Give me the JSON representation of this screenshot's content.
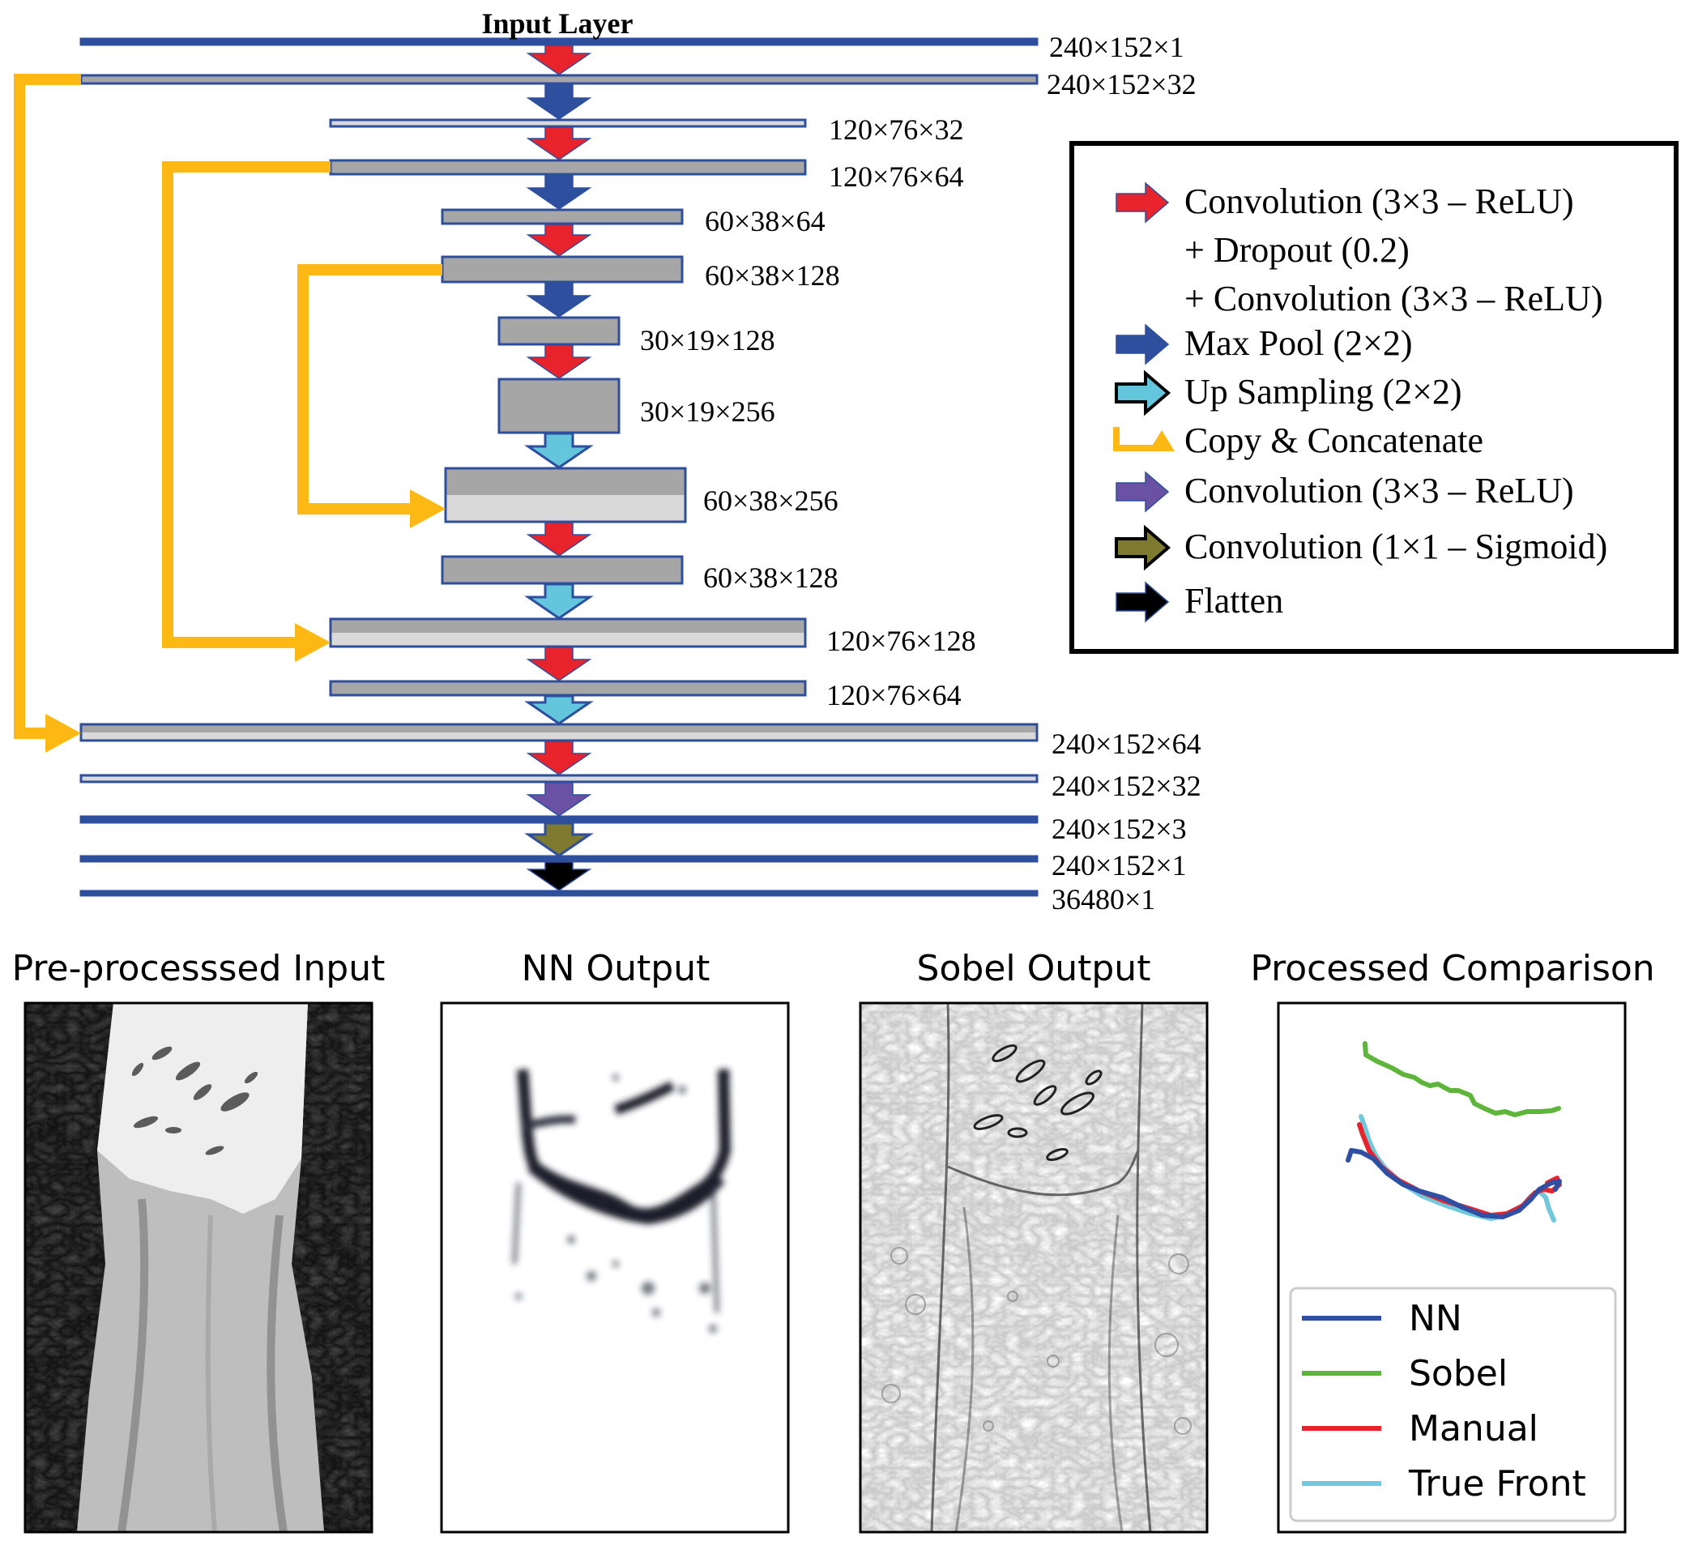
{
  "network": {
    "title": "Input Layer",
    "dims": [
      "240×152×1",
      "240×152×32",
      "120×76×32",
      "120×76×64",
      "60×38×64",
      "60×38×128",
      "30×19×128",
      "30×19×256",
      "60×38×256",
      "60×38×128",
      "120×76×128",
      "120×76×64",
      "240×152×64",
      "240×152×32",
      "240×152×3",
      "240×152×1",
      "36480×1"
    ]
  },
  "legend": {
    "items": [
      {
        "id": "conv-dropout",
        "lines": [
          "Convolution (3×3 – ReLU)",
          "+ Dropout (0.2)",
          "+ Convolution (3×3 – ReLU)"
        ],
        "color": "#e8232c",
        "marker": "arrow-filled"
      },
      {
        "id": "maxpool",
        "lines": [
          "Max Pool (2×2)"
        ],
        "color": "#2e4e9e",
        "marker": "arrow-filled"
      },
      {
        "id": "upsampling",
        "lines": [
          "Up Sampling (2×2)"
        ],
        "color": "#63c6dd",
        "marker": "arrow-outlined"
      },
      {
        "id": "copy-concat",
        "lines": [
          "Copy & Concatenate"
        ],
        "color": "#fdb813",
        "marker": "bracket"
      },
      {
        "id": "conv-relu",
        "lines": [
          "Convolution (3×3 – ReLU)"
        ],
        "color": "#6a51a3",
        "marker": "arrow-filled"
      },
      {
        "id": "conv-sigmoid",
        "lines": [
          "Convolution (1×1 – Sigmoid)"
        ],
        "color": "#7e7a2f",
        "marker": "arrow-outlined"
      },
      {
        "id": "flatten",
        "lines": [
          "Flatten"
        ],
        "color": "#000000",
        "marker": "arrow-filled"
      }
    ]
  },
  "panels": [
    {
      "title": "Pre-processsed Input",
      "icon": "glacier-satellite-image"
    },
    {
      "title": "NN Output",
      "icon": "calving-front-probability-map"
    },
    {
      "title": "Sobel Output",
      "icon": "sobel-edge-map"
    },
    {
      "title": "Processed Comparison",
      "icon": "front-comparison-plot"
    }
  ],
  "comparison_legend": [
    {
      "label": "NN",
      "color": "#2e4fa3"
    },
    {
      "label": "Sobel",
      "color": "#5db53a"
    },
    {
      "label": "Manual",
      "color": "#e8232c"
    },
    {
      "label": "True Front",
      "color": "#6fc8dc"
    }
  ]
}
